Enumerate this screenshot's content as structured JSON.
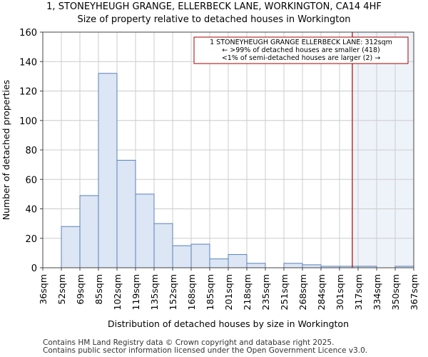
{
  "chart_data": {
    "type": "bar",
    "title": "1, STONEYHEUGH GRANGE, ELLERBECK LANE, WORKINGTON, CA14 4HF",
    "subtitle": "Size of property relative to detached houses in Workington",
    "xlabel": "Distribution of detached houses by size in Workington",
    "ylabel": "Number of detached properties",
    "ylim": [
      0,
      160
    ],
    "yticks": [
      0,
      20,
      40,
      60,
      80,
      100,
      120,
      140,
      160
    ],
    "xtick_labels": [
      "36sqm",
      "52sqm",
      "69sqm",
      "85sqm",
      "102sqm",
      "119sqm",
      "135sqm",
      "152sqm",
      "168sqm",
      "185sqm",
      "201sqm",
      "218sqm",
      "235sqm",
      "251sqm",
      "268sqm",
      "284sqm",
      "301sqm",
      "317sqm",
      "334sqm",
      "350sqm",
      "367sqm"
    ],
    "bins": [
      {
        "from": "36sqm",
        "to": "52sqm",
        "value": 0
      },
      {
        "from": "52sqm",
        "to": "69sqm",
        "value": 28
      },
      {
        "from": "69sqm",
        "to": "85sqm",
        "value": 49
      },
      {
        "from": "85sqm",
        "to": "102sqm",
        "value": 132
      },
      {
        "from": "102sqm",
        "to": "119sqm",
        "value": 73
      },
      {
        "from": "119sqm",
        "to": "135sqm",
        "value": 50
      },
      {
        "from": "135sqm",
        "to": "152sqm",
        "value": 30
      },
      {
        "from": "152sqm",
        "to": "168sqm",
        "value": 15
      },
      {
        "from": "168sqm",
        "to": "185sqm",
        "value": 16
      },
      {
        "from": "185sqm",
        "to": "201sqm",
        "value": 6
      },
      {
        "from": "201sqm",
        "to": "218sqm",
        "value": 9
      },
      {
        "from": "218sqm",
        "to": "235sqm",
        "value": 3
      },
      {
        "from": "235sqm",
        "to": "251sqm",
        "value": 0
      },
      {
        "from": "251sqm",
        "to": "268sqm",
        "value": 3
      },
      {
        "from": "268sqm",
        "to": "284sqm",
        "value": 2
      },
      {
        "from": "284sqm",
        "to": "301sqm",
        "value": 1
      },
      {
        "from": "301sqm",
        "to": "317sqm",
        "value": 1
      },
      {
        "from": "317sqm",
        "to": "334sqm",
        "value": 1
      },
      {
        "from": "334sqm",
        "to": "350sqm",
        "value": 0
      },
      {
        "from": "350sqm",
        "to": "367sqm",
        "value": 1
      }
    ],
    "marker": {
      "value_sqm": 312,
      "color": "#aa0000"
    },
    "highlight_from_sqm": 312,
    "annotation": [
      "1 STONEYHEUGH GRANGE ELLERBECK LANE: 312sqm",
      "← >99% of detached houses are smaller (418)",
      "<1% of semi-detached houses are larger (2) →"
    ],
    "bar_fill": "#dce6f4",
    "bar_stroke": "#5b80b8",
    "highlight_fill": "#eef3fa",
    "grid": true
  },
  "footer": {
    "line1": "Contains HM Land Registry data © Crown copyright and database right 2025.",
    "line2": "Contains public sector information licensed under the Open Government Licence v3.0."
  }
}
